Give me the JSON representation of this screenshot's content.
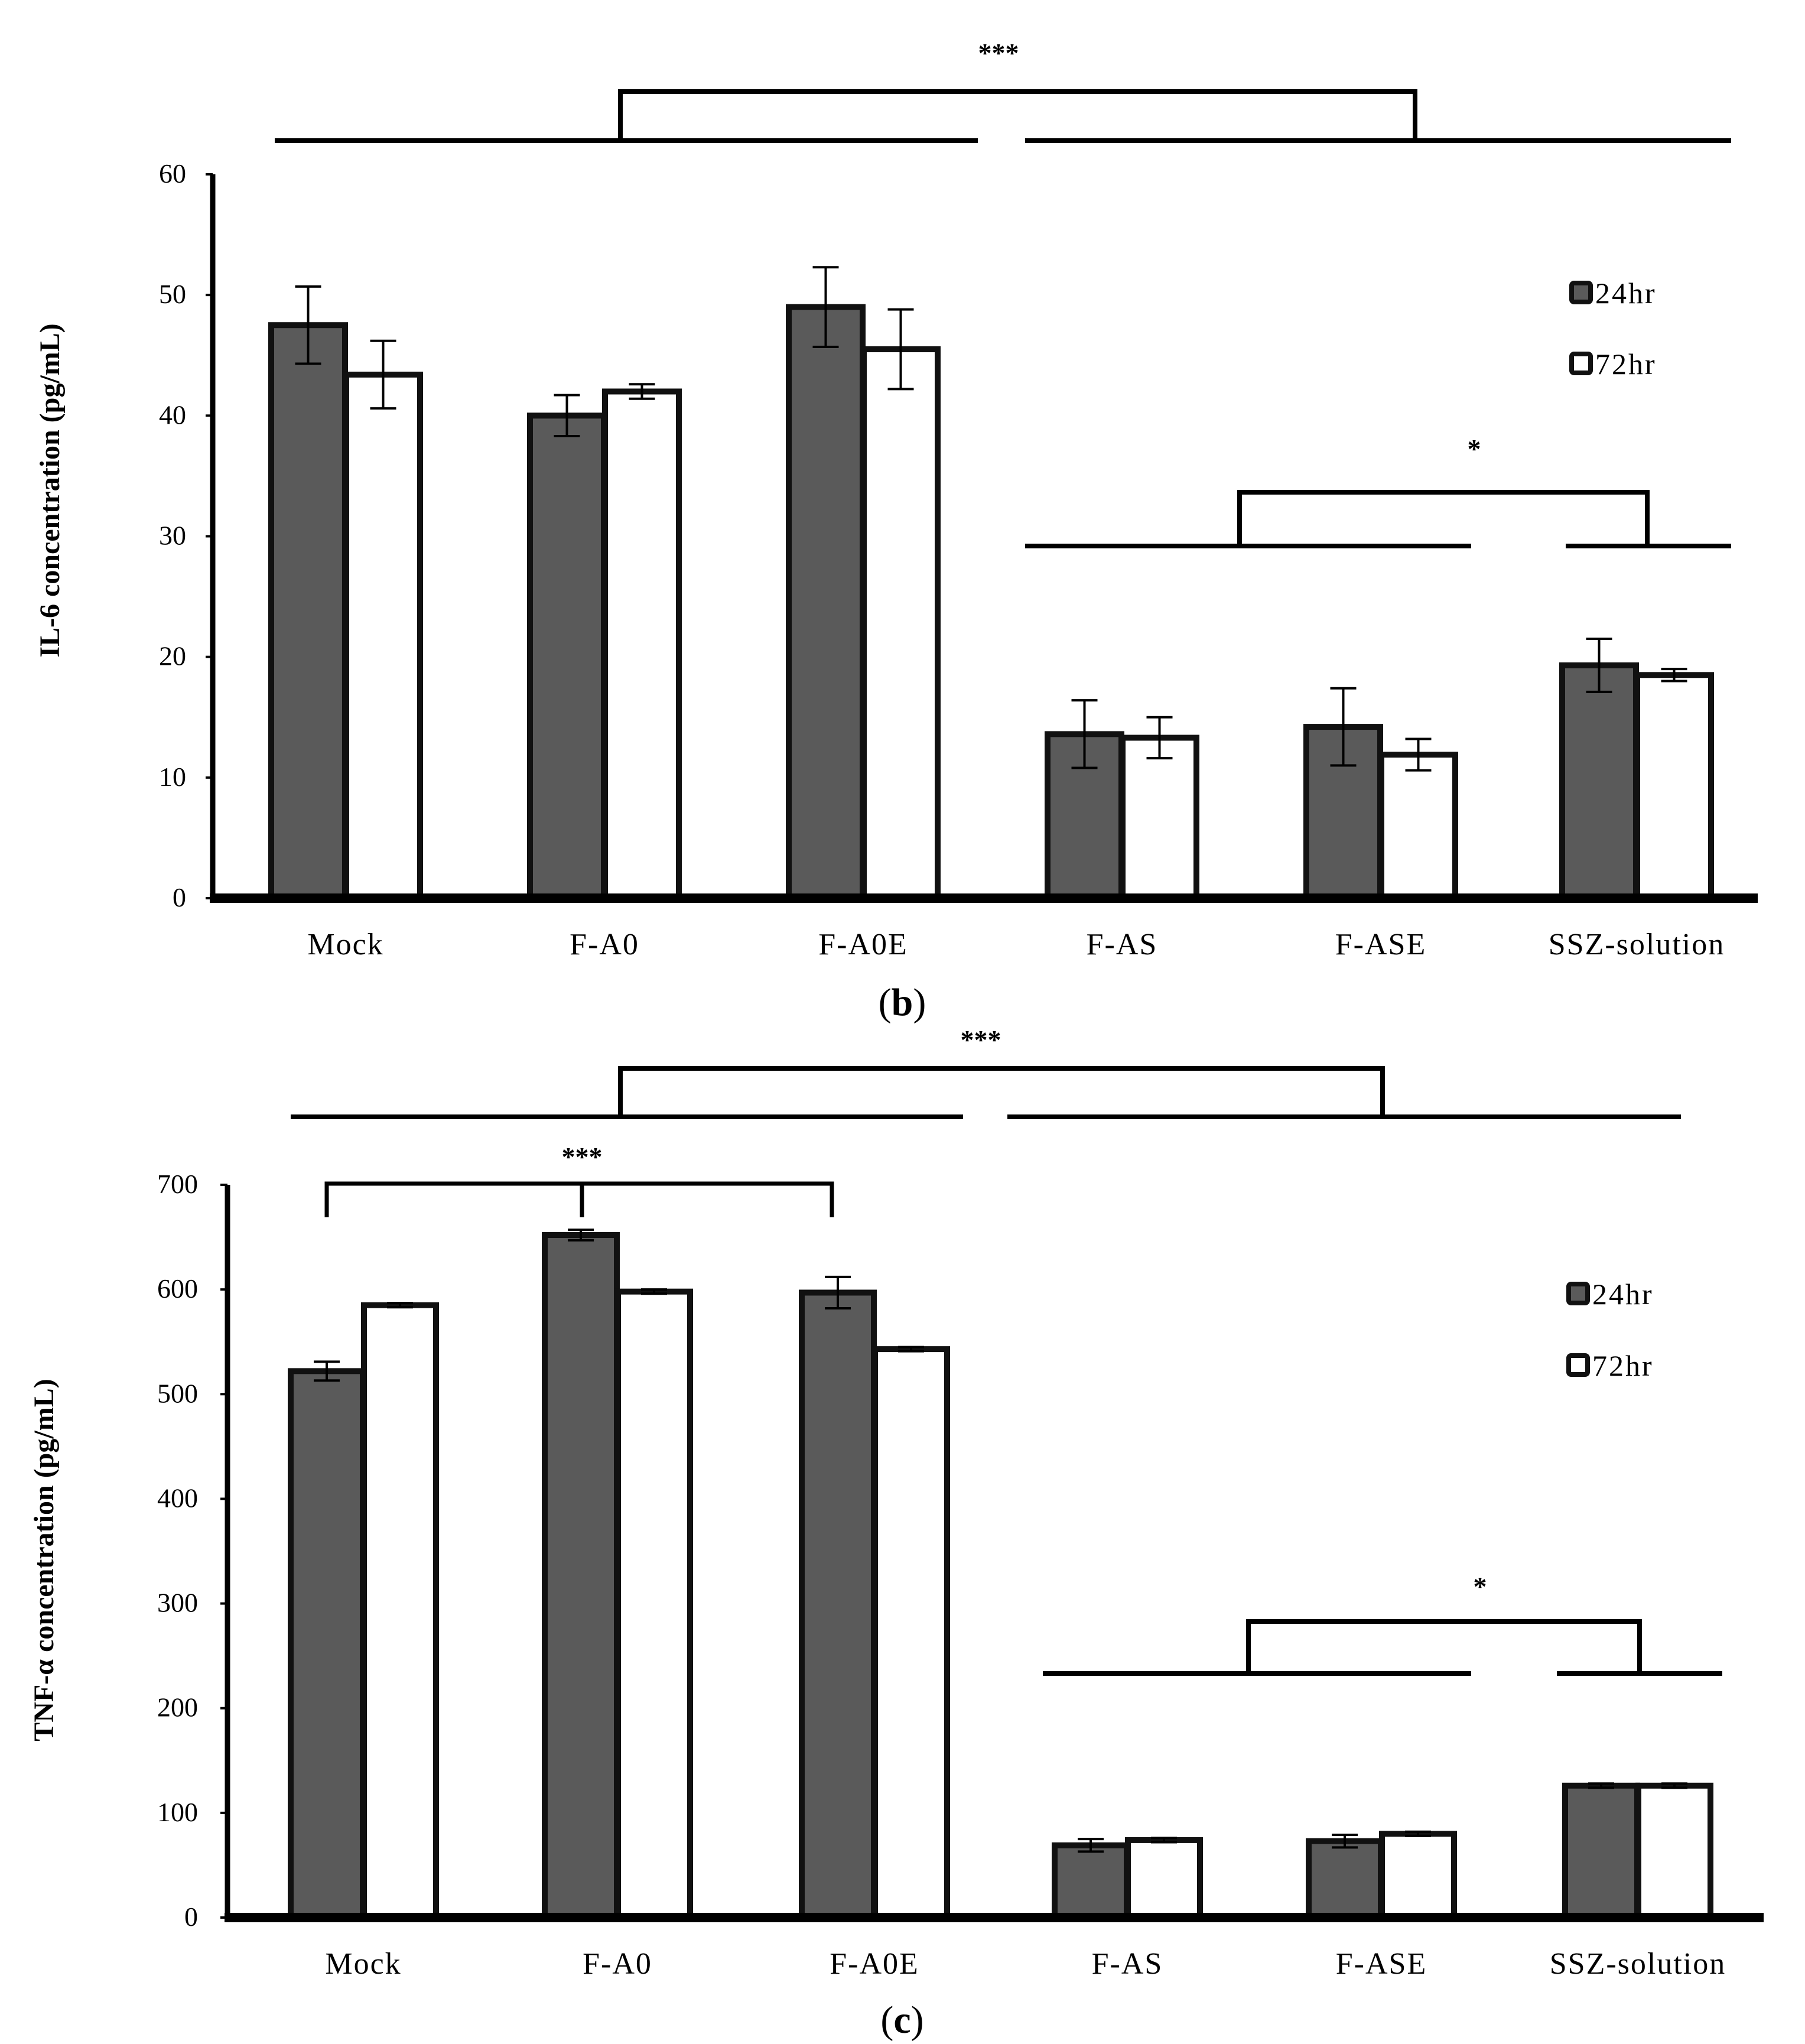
{
  "chart_data": [
    {
      "type": "bar",
      "panel_label": "b",
      "ylabel": "IL-6 concentration (pg/mL)",
      "xlabel": "",
      "ylim": [
        0,
        60
      ],
      "yticks": [
        0,
        10,
        20,
        30,
        40,
        50,
        60
      ],
      "categories": [
        "Mock",
        "F-A0",
        "F-A0E",
        "F-AS",
        "F-ASE",
        "SSZ-solution"
      ],
      "series": [
        {
          "name": "24hr",
          "color": "#5a5a5a",
          "values": [
            47.5,
            40.0,
            49.0,
            13.6,
            14.2,
            19.3
          ],
          "errors": [
            3.2,
            1.7,
            3.3,
            2.8,
            3.2,
            2.2
          ]
        },
        {
          "name": "72hr",
          "color": "#ffffff",
          "values": [
            43.4,
            42.0,
            45.5,
            13.3,
            11.9,
            18.5
          ],
          "errors": [
            2.8,
            0.6,
            3.3,
            1.7,
            1.3,
            0.5
          ]
        }
      ],
      "legend": [
        "24hr",
        "72hr"
      ],
      "significance": [
        {
          "label": "***",
          "left": [
            0,
            2
          ],
          "right": [
            3,
            5
          ]
        },
        {
          "label": "*",
          "left": [
            3,
            4
          ],
          "right": [
            5,
            5
          ]
        }
      ]
    },
    {
      "type": "bar",
      "panel_label": "c",
      "ylabel": "TNF-α concentration (pg/mL)",
      "xlabel": "",
      "ylim": [
        0,
        700
      ],
      "yticks": [
        0,
        100,
        200,
        300,
        400,
        500,
        600,
        700
      ],
      "categories": [
        "Mock",
        "F-A0",
        "F-A0E",
        "F-AS",
        "F-ASE",
        "SSZ-solution"
      ],
      "series": [
        {
          "name": "24hr",
          "color": "#5a5a5a",
          "values": [
            522,
            652,
            597,
            69,
            73,
            126
          ],
          "errors": [
            9,
            5,
            15,
            6,
            6,
            2
          ]
        },
        {
          "name": "72hr",
          "color": "#ffffff",
          "values": [
            585,
            598,
            543,
            74,
            80,
            126
          ],
          "errors": [
            2,
            2,
            2,
            2,
            2,
            2
          ]
        }
      ],
      "legend": [
        "24hr",
        "72hr"
      ],
      "significance": [
        {
          "label": "***",
          "left": [
            0,
            2
          ],
          "right": [
            3,
            5
          ]
        },
        {
          "label": "***",
          "pair": [
            0,
            1,
            2
          ]
        },
        {
          "label": "*",
          "left": [
            3,
            4
          ],
          "right": [
            5,
            5
          ]
        }
      ]
    }
  ]
}
